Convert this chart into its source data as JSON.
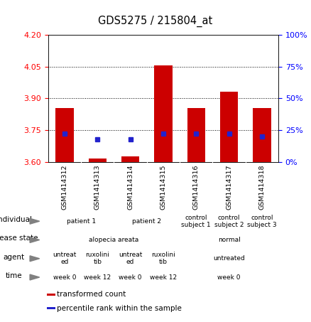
{
  "title": "GDS5275 / 215804_at",
  "samples": [
    "GSM1414312",
    "GSM1414313",
    "GSM1414314",
    "GSM1414315",
    "GSM1414316",
    "GSM1414317",
    "GSM1414318"
  ],
  "bar_values": [
    3.855,
    3.615,
    3.625,
    4.055,
    3.855,
    3.93,
    3.855
  ],
  "bar_base": 3.6,
  "blue_percentiles": [
    22,
    18,
    18,
    22,
    22,
    22,
    20
  ],
  "ylim_left": [
    3.6,
    4.2
  ],
  "ylim_right": [
    0,
    100
  ],
  "yticks_left": [
    3.6,
    3.75,
    3.9,
    4.05,
    4.2
  ],
  "yticks_right": [
    0,
    25,
    50,
    75,
    100
  ],
  "bar_color": "#cc0000",
  "blue_color": "#2222cc",
  "metadata_rows": [
    {
      "label": "individual",
      "cells": [
        {
          "text": "patient 1",
          "colspan": 2,
          "color": "#cceecc"
        },
        {
          "text": "patient 2",
          "colspan": 2,
          "color": "#aaddcc"
        },
        {
          "text": "control\nsubject 1",
          "colspan": 1,
          "color": "#88dd88"
        },
        {
          "text": "control\nsubject 2",
          "colspan": 1,
          "color": "#66cc77"
        },
        {
          "text": "control\nsubject 3",
          "colspan": 1,
          "color": "#33bb55"
        }
      ]
    },
    {
      "label": "disease state",
      "cells": [
        {
          "text": "alopecia areata",
          "colspan": 4,
          "color": "#8888ee"
        },
        {
          "text": "normal",
          "colspan": 3,
          "color": "#aabbff"
        }
      ]
    },
    {
      "label": "agent",
      "cells": [
        {
          "text": "untreat\ned",
          "colspan": 1,
          "color": "#ff99ee"
        },
        {
          "text": "ruxolini\ntib",
          "colspan": 1,
          "color": "#ee66dd"
        },
        {
          "text": "untreat\ned",
          "colspan": 1,
          "color": "#ff99ee"
        },
        {
          "text": "ruxolini\ntib",
          "colspan": 1,
          "color": "#ee66dd"
        },
        {
          "text": "untreated",
          "colspan": 3,
          "color": "#ff99ee"
        }
      ]
    },
    {
      "label": "time",
      "cells": [
        {
          "text": "week 0",
          "colspan": 1,
          "color": "#ffcc88"
        },
        {
          "text": "week 12",
          "colspan": 1,
          "color": "#ffaa55"
        },
        {
          "text": "week 0",
          "colspan": 1,
          "color": "#ffcc88"
        },
        {
          "text": "week 12",
          "colspan": 1,
          "color": "#ffaa55"
        },
        {
          "text": "week 0",
          "colspan": 3,
          "color": "#ffcc88"
        }
      ]
    }
  ],
  "legend_items": [
    {
      "color": "#cc0000",
      "label": "transformed count"
    },
    {
      "color": "#2222cc",
      "label": "percentile rank within the sample"
    }
  ]
}
